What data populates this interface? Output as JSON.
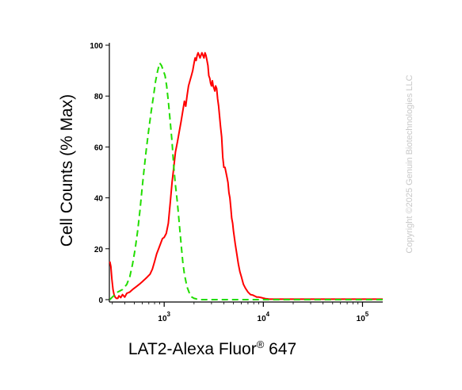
{
  "chart_data": {
    "type": "line",
    "title": "",
    "xlabel": "LAT2-Alexa Fluor",
    "xlabel_superscript": "®",
    "xlabel_suffix": " 647",
    "ylabel": "Cell Counts (% Max)",
    "xscale": "log",
    "xlim": [
      280,
      160000
    ],
    "ylim": [
      0,
      100
    ],
    "y_ticks": [
      0,
      20,
      40,
      60,
      80,
      100
    ],
    "x_ticks": [
      {
        "value": 1000,
        "base": "10",
        "exp": "3"
      },
      {
        "value": 10000,
        "base": "10",
        "exp": "4"
      },
      {
        "value": 100000,
        "base": "10",
        "exp": "5"
      }
    ],
    "grid": false,
    "legend": "none",
    "series": [
      {
        "color": "#ff0000",
        "style": "solid",
        "x": [
          283,
          290,
          297,
          305,
          312,
          320,
          330,
          340,
          350,
          365,
          380,
          400,
          420,
          450,
          480,
          520,
          560,
          600,
          640,
          680,
          720,
          760,
          800,
          840,
          880,
          920,
          960,
          1000,
          1050,
          1100,
          1150,
          1200,
          1250,
          1300,
          1360,
          1420,
          1480,
          1540,
          1600,
          1650,
          1700,
          1760,
          1820,
          1880,
          1940,
          2000,
          2050,
          2100,
          2150,
          2200,
          2250,
          2300,
          2350,
          2400,
          2460,
          2520,
          2580,
          2640,
          2700,
          2760,
          2820,
          2880,
          2940,
          3000,
          3060,
          3120,
          3180,
          3240,
          3300,
          3380,
          3460,
          3540,
          3620,
          3700,
          3800,
          3900,
          4000,
          4100,
          4200,
          4300,
          4400,
          4500,
          4600,
          4700,
          4800,
          4900,
          5000,
          5200,
          5400,
          5600,
          5800,
          6000,
          6300,
          6600,
          7000,
          7400,
          7800,
          8200,
          8600,
          9000,
          9500,
          10000,
          10500,
          11000,
          11500,
          12000,
          13000,
          14000,
          16000,
          20000,
          30000,
          50000,
          80000,
          120000,
          160000
        ],
        "y": [
          15,
          13,
          8,
          4,
          2,
          1,
          0.5,
          0.5,
          1.5,
          0.8,
          2,
          1,
          2.5,
          3,
          4,
          5,
          6,
          7,
          8,
          9,
          10,
          12,
          15,
          18,
          20,
          22,
          24,
          24.5,
          26,
          30,
          38,
          46,
          52,
          58,
          62,
          66,
          70,
          74,
          78,
          76,
          80,
          84,
          86,
          88,
          90,
          93,
          95,
          94,
          96,
          97,
          96,
          95,
          96,
          97,
          96,
          95,
          97,
          96,
          94,
          92,
          88,
          87,
          85,
          84,
          86,
          84,
          83,
          82,
          84,
          83,
          79,
          76,
          72,
          68,
          64,
          56,
          52,
          52,
          50,
          48,
          46,
          42,
          40,
          36,
          32,
          30,
          27,
          22,
          18,
          14,
          11,
          9,
          6,
          4.5,
          3,
          2,
          1.8,
          1.4,
          1,
          1,
          0.8,
          0.6,
          0.4,
          0.3,
          0.2,
          0.2,
          0.2,
          0.2,
          0.2,
          0.2,
          0.2,
          0.2,
          0.2,
          0.2,
          0.2
        ]
      },
      {
        "color": "#22dd00",
        "style": "dashed",
        "x": [
          283,
          300,
          320,
          340,
          360,
          380,
          400,
          420,
          450,
          480,
          510,
          540,
          570,
          600,
          630,
          660,
          700,
          740,
          780,
          820,
          860,
          900,
          940,
          980,
          1020,
          1060,
          1100,
          1150,
          1200,
          1250,
          1300,
          1360,
          1420,
          1480,
          1540,
          1600,
          1700,
          1800,
          1900,
          2000,
          2100,
          2200,
          2350,
          2500,
          2700,
          3000,
          3500,
          4000,
          5000,
          7000,
          10000,
          14000,
          20000,
          30000,
          50000,
          80000,
          120000,
          160000
        ],
        "y": [
          0,
          1,
          2,
          3,
          3.5,
          4,
          5,
          6,
          9,
          14,
          20,
          27,
          35,
          44,
          52,
          59,
          67,
          74,
          80,
          86,
          90,
          93,
          92,
          90,
          88,
          84,
          78,
          70,
          62,
          52,
          45,
          38,
          30,
          22,
          15,
          10,
          5,
          2.5,
          1,
          0.5,
          0.3,
          0,
          0,
          0,
          0,
          0,
          0,
          0,
          0,
          0,
          0,
          0,
          0,
          0,
          0,
          0,
          0,
          0
        ]
      }
    ]
  },
  "watermark": "Copyright ©2025 Genuin Biotechnologies LLC"
}
